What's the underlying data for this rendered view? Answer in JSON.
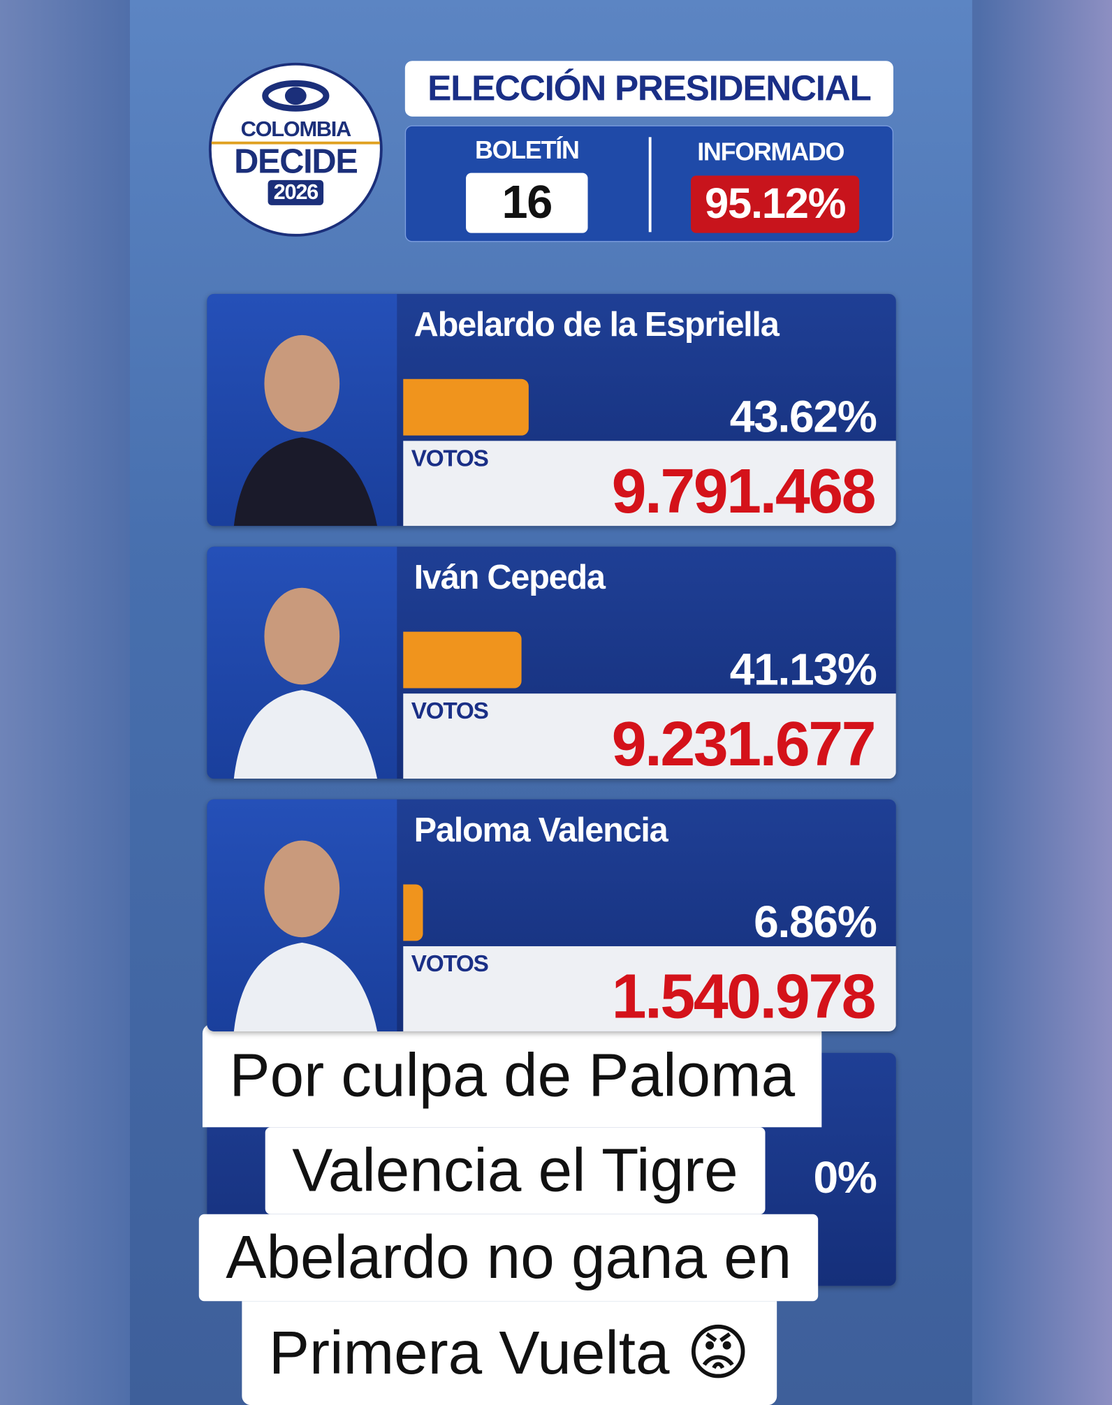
{
  "header": {
    "logo": {
      "brand": "COLOMBIA",
      "title": "DECIDE",
      "year": "2026"
    },
    "title": "ELECCIÓN PRESIDENCIAL",
    "bulletin_label": "BOLETÍN",
    "bulletin": "16",
    "reported_label": "INFORMADO",
    "reported": "95.12%"
  },
  "candidates": [
    {
      "name": "Abelardo de la Espriella",
      "pct": 43.62,
      "pct_label": "43.62%",
      "votes_label": "VOTOS",
      "votes": "9.791.468"
    },
    {
      "name": "Iván Cepeda",
      "pct": 41.13,
      "pct_label": "41.13%",
      "votes_label": "VOTOS",
      "votes": "9.231.677"
    },
    {
      "name": "Paloma Valencia",
      "pct": 6.86,
      "pct_label": "6.86%",
      "votes_label": "VOTOS",
      "votes": "1.540.978"
    }
  ],
  "hidden_card": {
    "pct_fragment": "0%"
  },
  "caption": [
    "Por culpa de Paloma",
    "Valencia el Tigre",
    "Abelardo no gana en",
    "Primera Vuelta 😡"
  ]
}
